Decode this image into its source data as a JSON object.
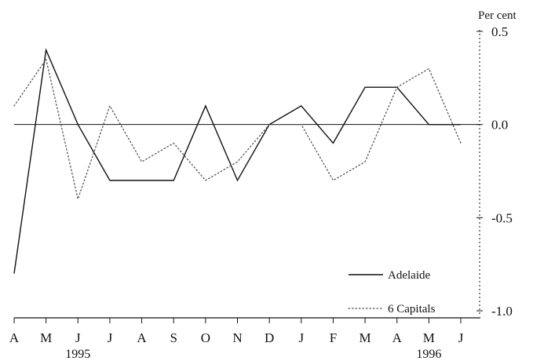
{
  "chart_data": {
    "type": "line",
    "title": "",
    "xlabel": "",
    "ylabel": "Per cent",
    "ylim": [
      -1.0,
      0.5
    ],
    "yticks": [
      "0.5",
      "0.0",
      "-0.5",
      "-1.0"
    ],
    "y_tick_values": [
      0.5,
      0.0,
      -0.5,
      -1.0
    ],
    "x": [
      "A",
      "M",
      "J",
      "J",
      "A",
      "S",
      "O",
      "N",
      "D",
      "J",
      "F",
      "M",
      "A",
      "M",
      "J"
    ],
    "year_labels": [
      {
        "index": 2,
        "text": "1995"
      },
      {
        "index": 13,
        "text": "1996"
      }
    ],
    "grid": false,
    "zero_line": true,
    "legend_position": "bottom-right",
    "series": [
      {
        "name": "Adelaide",
        "style": "solid",
        "color": "#111111",
        "values": [
          -0.8,
          0.4,
          0.0,
          -0.3,
          -0.3,
          -0.3,
          0.1,
          -0.3,
          0.0,
          0.1,
          -0.1,
          0.2,
          0.2,
          0.0,
          0.0
        ]
      },
      {
        "name": "6 Capitals",
        "style": "dotted",
        "color": "#555555",
        "values": [
          0.1,
          0.35,
          -0.4,
          0.1,
          -0.2,
          -0.1,
          -0.3,
          -0.2,
          0.0,
          0.0,
          -0.3,
          -0.2,
          0.2,
          0.3,
          -0.1
        ]
      }
    ]
  }
}
